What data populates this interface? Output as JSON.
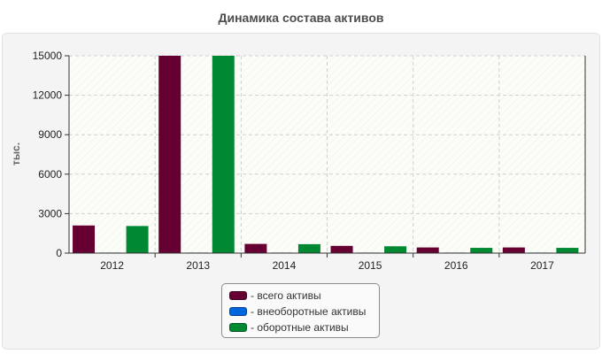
{
  "chart_data": {
    "type": "bar",
    "title": "Динамика состава активов",
    "ylabel": "тыс.",
    "xlabel": "",
    "categories": [
      "2012",
      "2013",
      "2014",
      "2015",
      "2016",
      "2017"
    ],
    "ylim": [
      0,
      15000
    ],
    "yticks": [
      0,
      3000,
      6000,
      9000,
      12000,
      15000
    ],
    "grid": true,
    "legend_position": "bottom-center",
    "series": [
      {
        "name": "- всего активы",
        "color": "#660033",
        "values": [
          2100,
          15000,
          700,
          550,
          430,
          430
        ]
      },
      {
        "name": "- внеоборотные активы",
        "color": "#0066dd",
        "values": [
          40,
          40,
          40,
          40,
          40,
          40
        ]
      },
      {
        "name": "- оборотные активы",
        "color": "#008833",
        "values": [
          2060,
          15000,
          680,
          520,
          400,
          400
        ]
      }
    ]
  }
}
